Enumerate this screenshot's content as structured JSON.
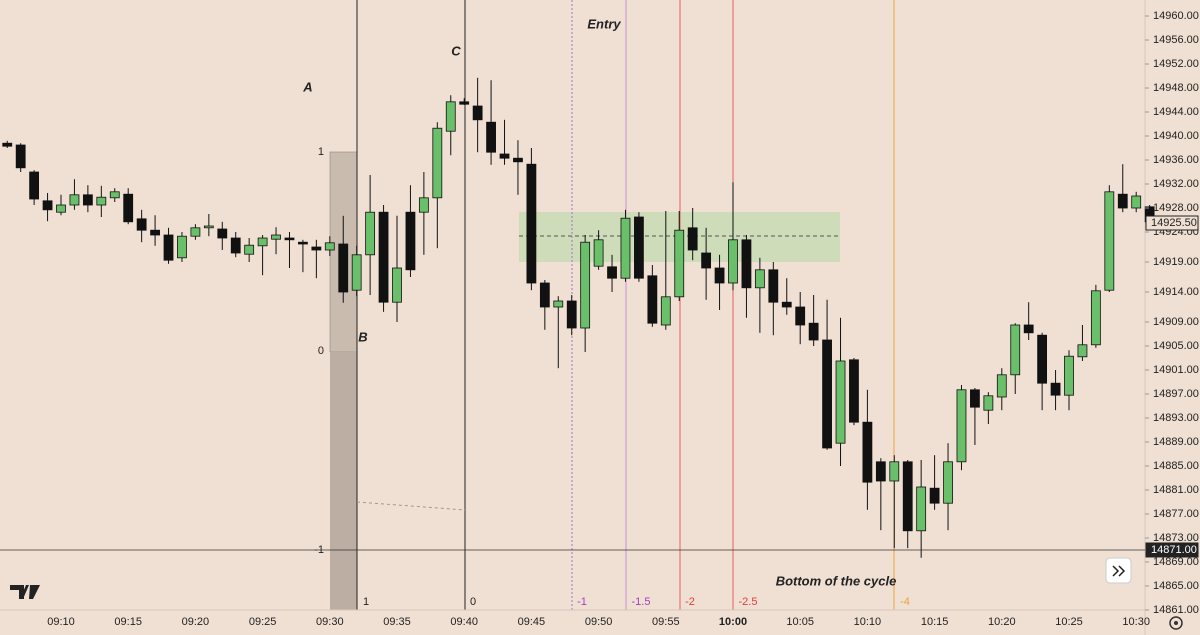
{
  "chart_data": {
    "type": "candlestick",
    "categories": [
      null,
      null,
      null,
      null,
      "09:10",
      null,
      null,
      null,
      null,
      "09:15",
      null,
      null,
      null,
      null,
      "09:20",
      null,
      null,
      null,
      null,
      "09:25",
      null,
      null,
      null,
      null,
      "09:30",
      null,
      null,
      null,
      null,
      "09:35",
      null,
      null,
      null,
      null,
      "09:40",
      null,
      null,
      null,
      null,
      "09:45",
      null,
      null,
      null,
      null,
      "09:50",
      null,
      null,
      null,
      null,
      "09:55",
      null,
      null,
      null,
      null,
      "10:00",
      null,
      null,
      null,
      null,
      "10:05",
      null,
      null,
      null,
      null,
      "10:10",
      null,
      null,
      null,
      null,
      "10:15",
      null,
      null,
      null,
      null,
      "10:20",
      null,
      null,
      null,
      null,
      "10:25",
      null,
      null,
      null,
      null,
      "10:30",
      null
    ],
    "open": [
      14938.8,
      14938.5,
      14934,
      14929.2,
      14927.3,
      14928.5,
      14930.2,
      14928.5,
      14929.7,
      14930.3,
      14926.2,
      14924.3,
      14923.5,
      14919.7,
      14923.3,
      14924.7,
      14924.5,
      14923,
      14920.3,
      14921.7,
      14922.8,
      14923,
      14922.3,
      14921.5,
      14921,
      14922,
      14914.3,
      14920.2,
      14927.3,
      14912.3,
      14927.3,
      14927.3,
      14929.7,
      14940.8,
      14945.7,
      14945,
      14942.3,
      14937,
      14936.3,
      14935.3,
      14915.5,
      14911.5,
      14912.5,
      14908,
      14918.3,
      14918.2,
      14916.3,
      14926.5,
      14916.7,
      14908.5,
      14913.2,
      14924.7,
      14920.5,
      14918,
      14915.5,
      14922.7,
      14914.7,
      14917.7,
      14912.3,
      14911.5,
      14908.8,
      14906,
      14888.8,
      14902.7,
      14892.3,
      14885.7,
      14882.5,
      14885.7,
      14874.2,
      14881.3,
      14878.8,
      14885.7,
      14897.7,
      14894.3,
      14896.5,
      14900.2,
      14908.5,
      14906.8,
      14898.8,
      14896.8,
      14903.2,
      14905.2,
      14914.3,
      14930.3,
      14928,
      14928.2
    ],
    "high": [
      14939.2,
      14938.8,
      14934.3,
      14930.5,
      14930.2,
      14932.8,
      14931.8,
      14931.7,
      14931.3,
      14931.3,
      14927.7,
      14926.8,
      14924.7,
      14924,
      14925.3,
      14927,
      14925.7,
      14924,
      14923,
      14923.5,
      14924.8,
      14924,
      14922.7,
      14922.7,
      14923.3,
      14926.7,
      14921.7,
      14933.5,
      14928.5,
      14926.7,
      14931.8,
      14934,
      14942.3,
      14946.8,
      14946.3,
      14949.7,
      14949.3,
      14942.7,
      14939.3,
      14938,
      14916,
      14913.3,
      14913.5,
      14923.5,
      14924.3,
      14920.2,
      14927.7,
      14927.3,
      14918.5,
      14927.5,
      14927.5,
      14928,
      14924.7,
      14920.2,
      14932.3,
      14923.5,
      14919.7,
      14919,
      14916.3,
      14914,
      14913.5,
      14912.7,
      14909.7,
      14903,
      14897.7,
      14886.3,
      14886.8,
      14886,
      14886,
      14886.8,
      14888.8,
      14898.5,
      14898,
      14897.3,
      14901.3,
      14908.8,
      14912.3,
      14907.2,
      14901,
      14904.3,
      14908.5,
      14915.2,
      14931.8,
      14935.3,
      14930.7,
      14928.5
    ],
    "low": [
      14938,
      14934,
      14928.5,
      14925.8,
      14926.8,
      14927.7,
      14927.3,
      14926.5,
      14929,
      14925.3,
      14922.3,
      14921.7,
      14918.7,
      14919,
      14922.7,
      14923.3,
      14921,
      14919.8,
      14919,
      14916.8,
      14920.3,
      14918,
      14917.3,
      14916.3,
      14920,
      14912.2,
      14913.3,
      14913.5,
      14910.7,
      14909,
      14916.5,
      14920.2,
      14921.3,
      14936.8,
      14945.2,
      14937.3,
      14935.2,
      14935.2,
      14930.2,
      14914.3,
      14907.7,
      14901.3,
      14906.8,
      14904,
      14917.7,
      14914,
      14915.7,
      14915.7,
      14908.2,
      14907.7,
      14912.5,
      14919.3,
      14912.7,
      14911,
      14914.3,
      14909.7,
      14907.2,
      14906.8,
      14910.2,
      14905.3,
      14905,
      14887.7,
      14885,
      14891.8,
      14877.7,
      14874.3,
      14871.3,
      14871.3,
      14869.7,
      14877.7,
      14874.3,
      14884.3,
      14888.5,
      14892,
      14894.3,
      14897,
      14906,
      14894.3,
      14894.3,
      14894.3,
      14902.5,
      14904.7,
      14914,
      14927.3,
      14927.3,
      14924.3
    ],
    "close": [
      14938.3,
      14934.7,
      14929.5,
      14927.7,
      14928.5,
      14930.2,
      14928.5,
      14929.8,
      14930.7,
      14925.7,
      14924.3,
      14923.5,
      14919.3,
      14923.3,
      14924.7,
      14925,
      14923,
      14920.5,
      14921.8,
      14923,
      14923.5,
      14922.7,
      14922,
      14921,
      14922.2,
      14914,
      14920.2,
      14927.3,
      14912.3,
      14918,
      14917.7,
      14929.7,
      14941.3,
      14945.7,
      14945.3,
      14942.7,
      14937.3,
      14936.3,
      14935.7,
      14915.5,
      14911.5,
      14912.5,
      14908,
      14922.3,
      14922.7,
      14916.3,
      14926.3,
      14916.3,
      14908.8,
      14913.2,
      14924.3,
      14921,
      14918,
      14915.5,
      14922.7,
      14914.7,
      14917.7,
      14912.3,
      14911.5,
      14908.5,
      14906,
      14888,
      14902.5,
      14892.3,
      14882.3,
      14882.5,
      14885.7,
      14874.2,
      14881.5,
      14878.8,
      14885.7,
      14897.7,
      14894.8,
      14896.7,
      14900.2,
      14908.5,
      14907.2,
      14898.8,
      14896.8,
      14903.3,
      14905.2,
      14914.2,
      14930.7,
      14928,
      14930,
      14925.7
    ],
    "up_color": "#6abf6a",
    "down_color": "#111111",
    "ylim": [
      14856.83,
      14962.67
    ],
    "yticks": [
      {
        "value": 14960,
        "label": "14960.00"
      },
      {
        "value": 14956,
        "label": "14956.00"
      },
      {
        "value": 14952,
        "label": "14952.00"
      },
      {
        "value": 14948,
        "label": "14948.00"
      },
      {
        "value": 14944,
        "label": "14944.00"
      },
      {
        "value": 14940,
        "label": "14940.00"
      },
      {
        "value": 14936,
        "label": "14936.00"
      },
      {
        "value": 14932,
        "label": "14932.00"
      },
      {
        "value": 14928,
        "label": "14928.00"
      },
      {
        "value": 14924,
        "label": "14924.00"
      },
      {
        "value": 14919,
        "label": "14919.00"
      },
      {
        "value": 14914,
        "label": "14914.00"
      },
      {
        "value": 14909,
        "label": "14909.00"
      },
      {
        "value": 14905,
        "label": "14905.00"
      },
      {
        "value": 14901,
        "label": "14901.00"
      },
      {
        "value": 14897,
        "label": "14897.00"
      },
      {
        "value": 14893,
        "label": "14893.00"
      },
      {
        "value": 14889,
        "label": "14889.00"
      },
      {
        "value": 14885,
        "label": "14885.00"
      },
      {
        "value": 14881,
        "label": "14881.00"
      },
      {
        "value": 14877,
        "label": "14877.00"
      },
      {
        "value": 14873,
        "label": "14873.00"
      },
      {
        "value": 14869,
        "label": "14869.00"
      },
      {
        "value": 14865,
        "label": "14865.00"
      },
      {
        "value": 14861,
        "label": "14861.00"
      }
    ],
    "price_tags": [
      {
        "value": 14925.5,
        "label": "14925.50"
      },
      {
        "value": 14871,
        "label": "14871.00"
      }
    ],
    "annotations": {
      "entry": "Entry",
      "a": "A",
      "b": "B",
      "c": "C",
      "bottom": "Bottom of the cycle"
    },
    "fib_levels": [
      "1",
      "0",
      "-1"
    ],
    "level_labels": [
      "1",
      "0",
      "-1",
      "-1.5",
      "-2",
      "-2.5",
      "-4"
    ]
  }
}
